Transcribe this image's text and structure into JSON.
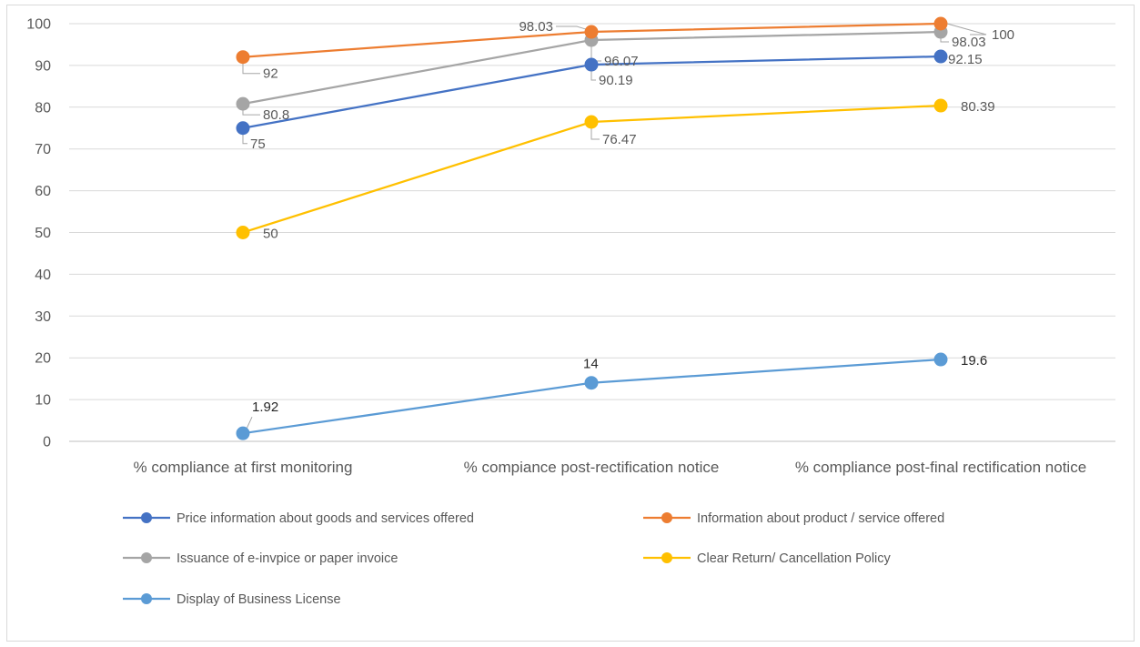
{
  "chart_data": {
    "type": "line",
    "title": "",
    "xlabel": "",
    "ylabel": "",
    "categories": [
      "% compliance  at first monitoring",
      "% compiance  post-rectification notice",
      "% compliance  post-final rectification notice"
    ],
    "ylim": [
      0,
      100
    ],
    "yticks": [
      "0",
      "10",
      "20",
      "30",
      "40",
      "50",
      "60",
      "70",
      "80",
      "90",
      "100"
    ],
    "grid": true,
    "legend_position": "bottom",
    "series": [
      {
        "name": "Price information about goods and services offered",
        "color": "#4472C4",
        "values": [
          75,
          90.19,
          92.15
        ],
        "labels": [
          "75",
          "90.19",
          "92.15"
        ]
      },
      {
        "name": "Information about product / service offered",
        "color": "#ED7D31",
        "values": [
          92,
          98.03,
          100
        ],
        "labels": [
          "92",
          "98.03",
          "100"
        ]
      },
      {
        "name": "Issuance of e-invpice or paper invoice",
        "color": "#A5A5A5",
        "values": [
          80.8,
          96.07,
          98.03
        ],
        "labels": [
          "80.8",
          "96.07",
          "98.03"
        ]
      },
      {
        "name": "Clear Return/ Cancellation Policy",
        "color": "#FFC000",
        "values": [
          50,
          76.47,
          80.39
        ],
        "labels": [
          "50",
          "76.47",
          "80.39"
        ]
      },
      {
        "name": "Display of Business License",
        "color": "#5B9BD5",
        "values": [
          1.92,
          14,
          19.6
        ],
        "labels": [
          "1.92",
          "14",
          "19.6"
        ]
      }
    ]
  }
}
